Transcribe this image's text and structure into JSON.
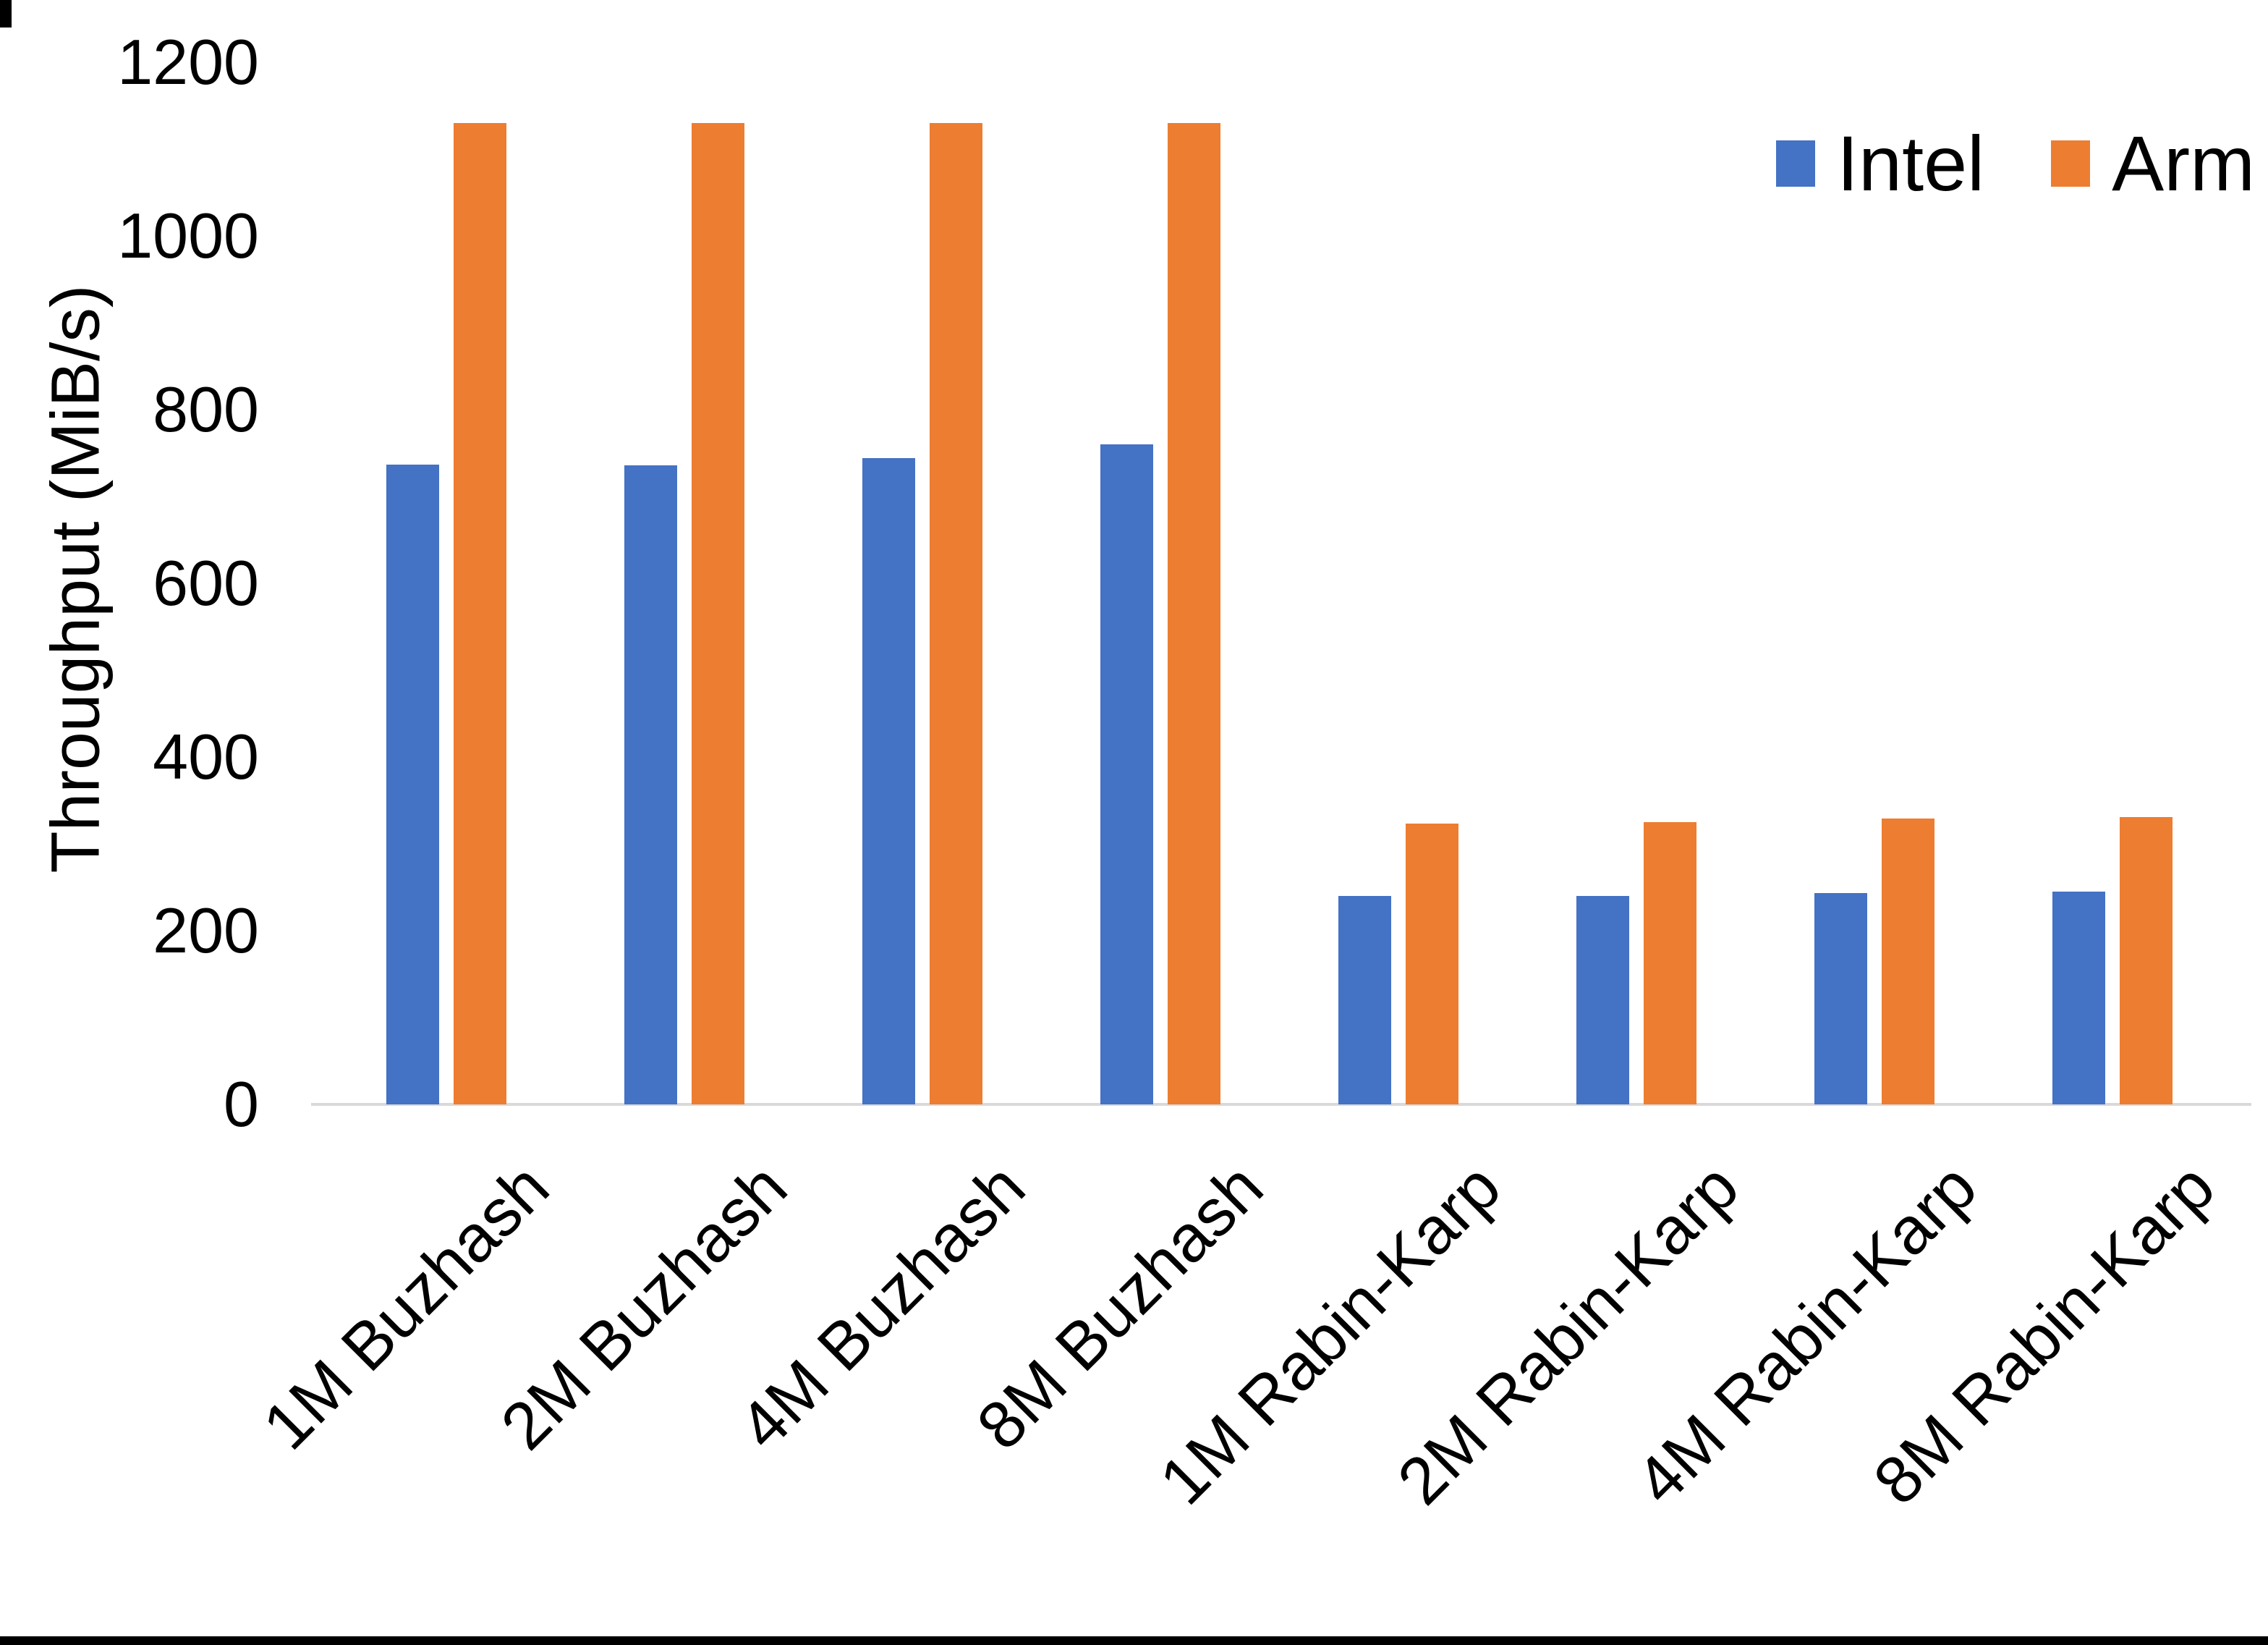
{
  "chart_data": {
    "type": "bar",
    "title": "",
    "xlabel": "",
    "ylabel": "Throughput (MiB/s)",
    "ylim": [
      0,
      1200
    ],
    "yticks": [
      0,
      200,
      400,
      600,
      800,
      1000,
      1200
    ],
    "grid": false,
    "legend_position": "top-right",
    "axis_line_color": "#d9d9d9",
    "categories": [
      "1M Buzhash",
      "2M Buzhash",
      "4M Buzhash",
      "8M Buzhash",
      "1M Rabin-Karp",
      "2M Rabin-Karp",
      "4M Rabin-Karp",
      "8M Rabin-Karp"
    ],
    "series": [
      {
        "name": "Intel",
        "color": "#4472c4",
        "values": [
          737,
          736,
          744,
          760,
          240,
          240,
          243,
          245
        ]
      },
      {
        "name": "Arm",
        "color": "#ed7d31",
        "values": [
          1130,
          1130,
          1130,
          1130,
          323,
          325,
          329,
          331
        ]
      }
    ]
  }
}
